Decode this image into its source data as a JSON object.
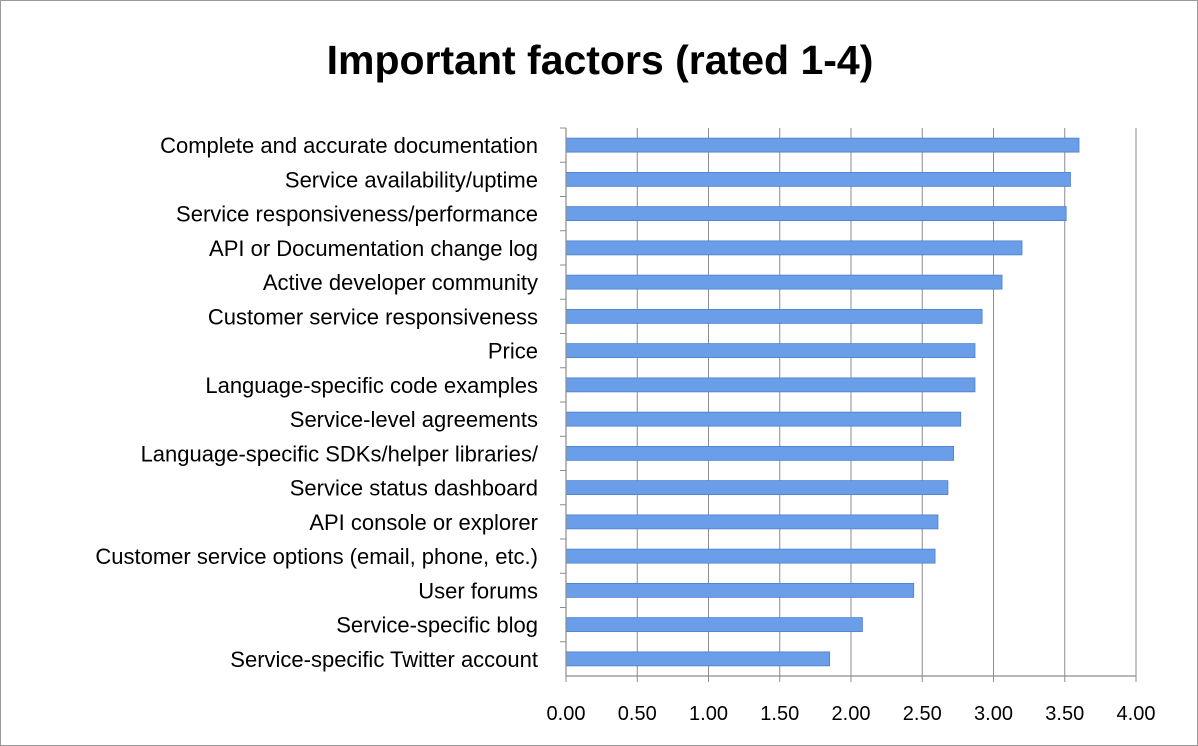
{
  "chart_data": {
    "type": "bar",
    "orientation": "horizontal",
    "title": "Important factors (rated 1-4)",
    "xlabel": "",
    "ylabel": "",
    "xlim": [
      0,
      4
    ],
    "x_ticks": [
      "0.00",
      "0.50",
      "1.00",
      "1.50",
      "2.00",
      "2.50",
      "3.00",
      "3.50",
      "4.00"
    ],
    "tick_values": [
      0,
      0.5,
      1,
      1.5,
      2,
      2.5,
      3,
      3.5,
      4
    ],
    "grid": "vertical",
    "legend": "none",
    "bar_color": "#6a9ee8",
    "categories": [
      "Complete and accurate documentation",
      "Service availability/uptime",
      "Service responsiveness/performance",
      "API or Documentation change log",
      "Active developer community",
      "Customer service responsiveness",
      "Price",
      "Language-specific code examples",
      "Service-level agreements",
      "Language-specific SDKs/helper libraries/",
      "Service status dashboard",
      "API console or explorer",
      "Customer service options (email, phone, etc.)",
      "User forums",
      "Service-specific blog",
      "Service-specific Twitter account"
    ],
    "values": [
      3.6,
      3.54,
      3.51,
      3.2,
      3.06,
      2.92,
      2.87,
      2.87,
      2.77,
      2.72,
      2.68,
      2.61,
      2.59,
      2.44,
      2.08,
      1.85
    ]
  }
}
